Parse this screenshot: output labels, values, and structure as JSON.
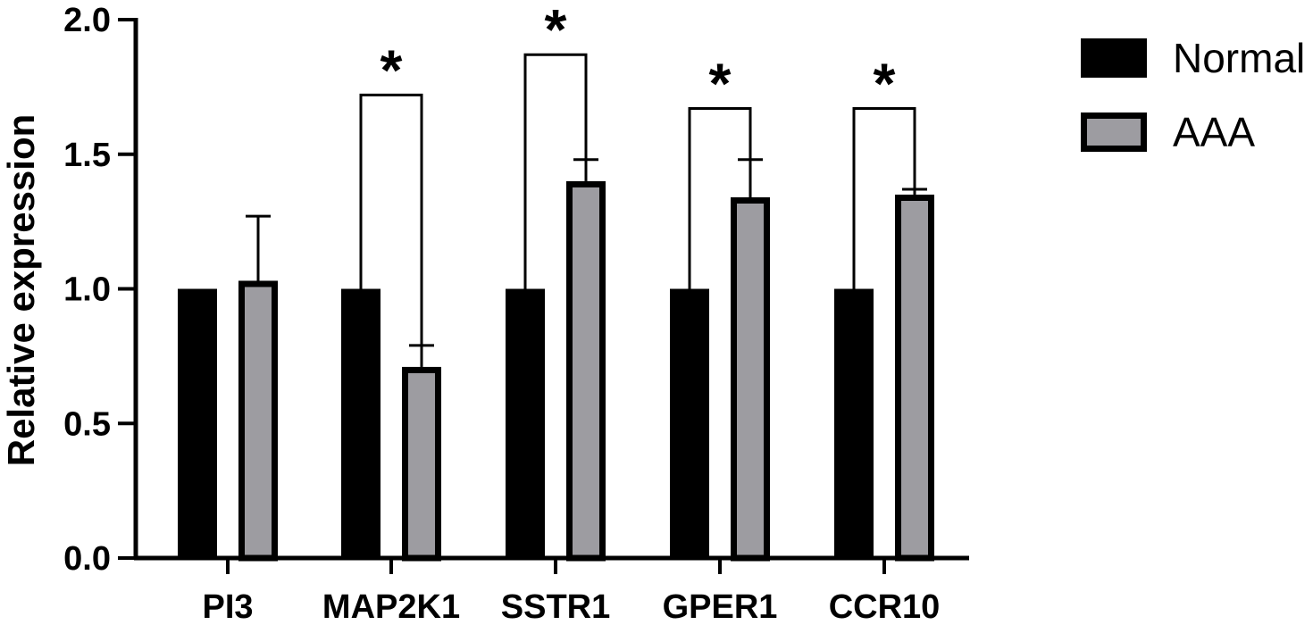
{
  "chart_data": {
    "type": "bar",
    "title": "",
    "xlabel": "",
    "ylabel": "Relative expression",
    "ylim": [
      0,
      2.0
    ],
    "yticks": [
      "0.0",
      "0.5",
      "1.0",
      "1.5",
      "2.0"
    ],
    "categories": [
      "PI3",
      "MAP2K1",
      "SSTR1",
      "GPER1",
      "CCR10"
    ],
    "series": [
      {
        "name": "Normal",
        "values": [
          1.0,
          1.0,
          1.0,
          1.0,
          1.0
        ],
        "color": "#000000"
      },
      {
        "name": "AAA",
        "values": [
          1.03,
          0.71,
          1.4,
          1.34,
          1.35
        ],
        "error": [
          0.24,
          0.08,
          0.08,
          0.14,
          0.02
        ],
        "color": "#9d9ca1"
      }
    ],
    "significance": [
      {
        "category": "MAP2K1",
        "label": "*",
        "bracket_y": 1.72
      },
      {
        "category": "SSTR1",
        "label": "*",
        "bracket_y": 1.87
      },
      {
        "category": "GPER1",
        "label": "*",
        "bracket_y": 1.67
      },
      {
        "category": "CCR10",
        "label": "*",
        "bracket_y": 1.67
      }
    ],
    "legend": {
      "position": "top-right"
    },
    "grid": false
  }
}
